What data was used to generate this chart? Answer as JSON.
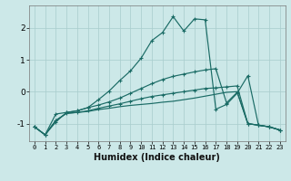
{
  "xlabel": "Humidex (Indice chaleur)",
  "bg_color": "#cce8e8",
  "line_color": "#1a6b65",
  "grid_color": "#a8cccc",
  "x": [
    0,
    1,
    2,
    3,
    4,
    5,
    6,
    7,
    8,
    9,
    10,
    11,
    12,
    13,
    14,
    15,
    16,
    17,
    18,
    19,
    20,
    21,
    22,
    23
  ],
  "line1": [
    -1.1,
    -1.35,
    -0.95,
    -0.65,
    -0.6,
    -0.5,
    -0.25,
    0.02,
    0.35,
    0.65,
    1.05,
    1.6,
    1.85,
    2.35,
    1.9,
    2.28,
    2.25,
    -0.55,
    -0.4,
    -0.05,
    0.5,
    -1.05,
    -1.1,
    -1.2
  ],
  "line2": [
    -1.1,
    -1.35,
    -0.7,
    -0.65,
    -0.6,
    -0.5,
    -0.42,
    -0.32,
    -0.2,
    -0.05,
    0.1,
    0.25,
    0.38,
    0.48,
    0.55,
    0.62,
    0.68,
    0.72,
    -0.35,
    -0.02,
    -1.0,
    -1.05,
    -1.1,
    -1.2
  ],
  "line3": [
    -1.1,
    -1.35,
    -0.9,
    -0.68,
    -0.65,
    -0.6,
    -0.52,
    -0.45,
    -0.38,
    -0.3,
    -0.22,
    -0.15,
    -0.1,
    -0.05,
    0.0,
    0.05,
    0.1,
    0.12,
    0.15,
    0.18,
    -1.0,
    -1.05,
    -1.1,
    -1.2
  ],
  "line4": [
    -1.1,
    -1.35,
    -0.9,
    -0.68,
    -0.65,
    -0.62,
    -0.56,
    -0.52,
    -0.47,
    -0.43,
    -0.4,
    -0.37,
    -0.33,
    -0.3,
    -0.25,
    -0.2,
    -0.14,
    -0.08,
    -0.02,
    0.0,
    -1.0,
    -1.05,
    -1.1,
    -1.2
  ],
  "ylim": [
    -1.55,
    2.7
  ],
  "yticks": [
    -1,
    0,
    1,
    2
  ],
  "xticks": [
    0,
    1,
    2,
    3,
    4,
    5,
    6,
    7,
    8,
    9,
    10,
    11,
    12,
    13,
    14,
    15,
    16,
    17,
    18,
    19,
    20,
    21,
    22,
    23
  ]
}
